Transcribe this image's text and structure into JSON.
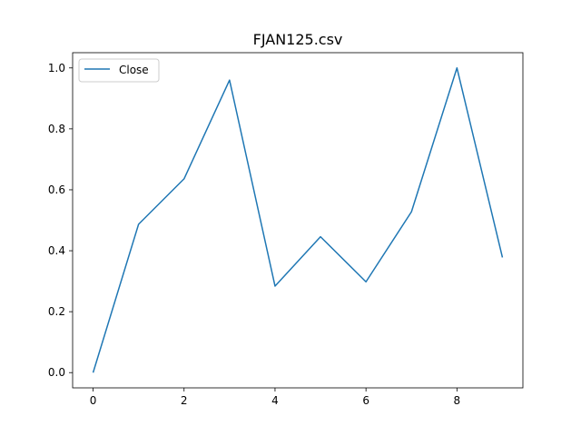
{
  "chart_data": {
    "type": "line",
    "title": "FJAN125.csv",
    "xlabel": "",
    "ylabel": "",
    "x": [
      0,
      1,
      2,
      3,
      4,
      5,
      6,
      7,
      8,
      9
    ],
    "series": [
      {
        "name": "Close",
        "color": "#1f77b4",
        "values": [
          0.0,
          0.487,
          0.636,
          0.96,
          0.284,
          0.446,
          0.298,
          0.528,
          1.0,
          0.378
        ]
      }
    ],
    "xlim": [
      -0.45,
      9.45
    ],
    "ylim": [
      -0.05,
      1.05
    ],
    "xticks": [
      0,
      2,
      4,
      6,
      8
    ],
    "xtick_labels": [
      "0",
      "2",
      "4",
      "6",
      "8"
    ],
    "yticks": [
      0.0,
      0.2,
      0.4,
      0.6,
      0.8,
      1.0
    ],
    "ytick_labels": [
      "0.0",
      "0.2",
      "0.4",
      "0.6",
      "0.8",
      "1.0"
    ],
    "grid": false,
    "legend_position": "upper-left"
  }
}
